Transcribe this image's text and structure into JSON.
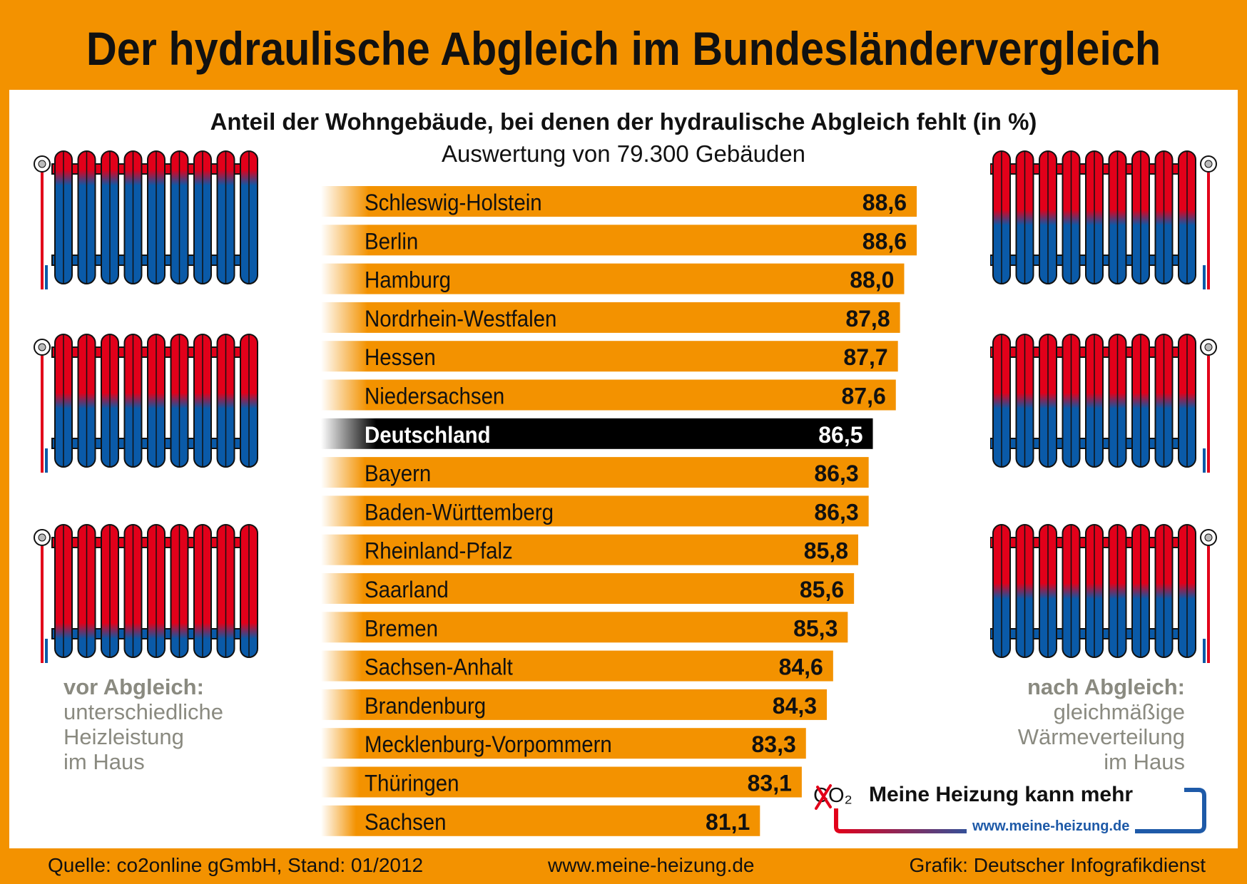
{
  "title": "Der hydraulische Abgleich im Bundesländervergleich",
  "chart_data": {
    "type": "bar",
    "orientation": "horizontal",
    "title": "Anteil der Wohngebäude, bei denen der hydraulische Abgleich fehlt (in %)",
    "subtitle": "Auswertung von 79.300 Gebäuden",
    "categories": [
      "Schleswig-Holstein",
      "Berlin",
      "Hamburg",
      "Nordrhein-Westfalen",
      "Hessen",
      "Niedersachsen",
      "Deutschland",
      "Bayern",
      "Baden-Württemberg",
      "Rheinland-Pfalz",
      "Saarland",
      "Bremen",
      "Sachsen-Anhalt",
      "Brandenburg",
      "Mecklenburg-Vorpommern",
      "Thüringen",
      "Sachsen"
    ],
    "values": [
      88.6,
      88.6,
      88.0,
      87.8,
      87.7,
      87.6,
      86.5,
      86.3,
      86.3,
      85.8,
      85.6,
      85.3,
      84.6,
      84.3,
      83.3,
      83.1,
      81.1
    ],
    "value_labels": [
      "88,6",
      "88,6",
      "88,0",
      "87,8",
      "87,7",
      "87,6",
      "86,5",
      "86,3",
      "86,3",
      "85,8",
      "85,6",
      "85,3",
      "84,6",
      "84,3",
      "83,3",
      "83,1",
      "81,1"
    ],
    "highlight": "Deutschland",
    "colors": {
      "bar": "#f39200",
      "highlight": "#000000"
    },
    "grid": false
  },
  "notes": {
    "left": {
      "heading": "vor Abgleich:",
      "lines": [
        "unterschiedliche",
        "Heizleistung",
        "im Haus"
      ]
    },
    "right": {
      "heading": "nach Abgleich:",
      "lines": [
        "gleichmäßige",
        "Wärmeverteilung",
        "im Haus"
      ]
    }
  },
  "logo": {
    "co2": "CO₂",
    "slogan": "Meine Heizung kann mehr",
    "url": "www.meine-heizung.de"
  },
  "footer": {
    "source": "Quelle: co2online gGmbH, Stand: 01/2012",
    "website": "www.meine-heizung.de",
    "credit": "Grafik: Deutscher Infografikdienst"
  },
  "radiators": {
    "left_red_fill": [
      0.2,
      0.5,
      0.8
    ],
    "right_red_fill": [
      0.5,
      0.5,
      0.5
    ],
    "colors": {
      "hot": "#e2001a",
      "cold": "#0a5aa8"
    }
  }
}
